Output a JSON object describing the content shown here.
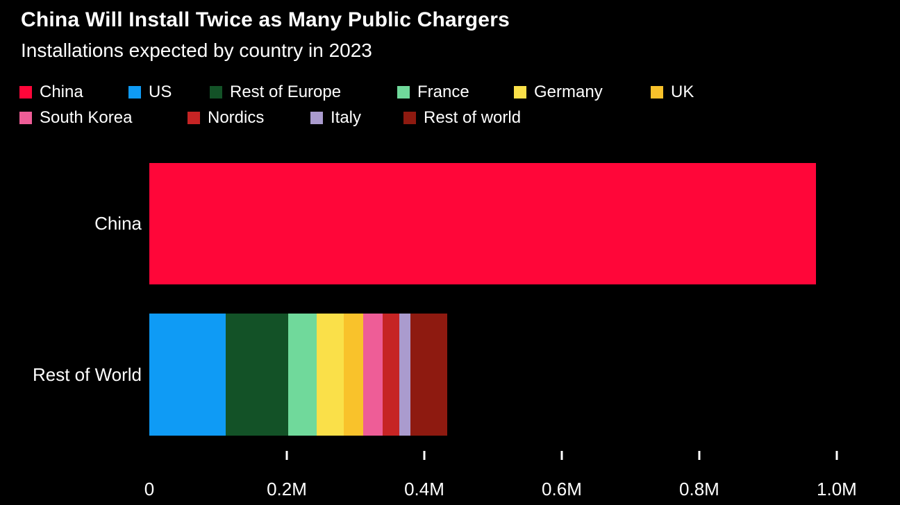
{
  "colors": {
    "background": "#000000",
    "text": "#ffffff",
    "china": "#ff0639",
    "us": "#0f9bf5",
    "rest_of_europe": "#135227",
    "france": "#70d99b",
    "germany": "#fae049",
    "uk": "#f9c22b",
    "south_korea": "#ee5d97",
    "nordics": "#c62424",
    "italy": "#aa9bce",
    "rest_of_world": "#8e1a10"
  },
  "chart_data": {
    "type": "bar",
    "orientation": "horizontal",
    "stacked": true,
    "title": "China Will Install Twice as Many Public Chargers",
    "subtitle": "Installations expected by country in 2023",
    "xlabel": "",
    "ylabel": "",
    "unit": "public chargers",
    "xlim": [
      0,
      1092000
    ],
    "grid": false,
    "legend_position": "top",
    "x_ticks": [
      {
        "label": "0",
        "value": 0,
        "show_mark": false
      },
      {
        "label": "0.2M",
        "value": 200000,
        "show_mark": true
      },
      {
        "label": "0.4M",
        "value": 400000,
        "show_mark": true
      },
      {
        "label": "0.6M",
        "value": 600000,
        "show_mark": true
      },
      {
        "label": "0.8M",
        "value": 800000,
        "show_mark": true
      },
      {
        "label": "1.0M",
        "value": 1000000,
        "show_mark": true
      }
    ],
    "rows": [
      {
        "category": "China",
        "segments": [
          {
            "name": "China",
            "color": "china",
            "value": 970000
          }
        ]
      },
      {
        "category": "Rest of World",
        "segments": [
          {
            "name": "US",
            "color": "us",
            "value": 111000
          },
          {
            "name": "Rest of Europe",
            "color": "rest_of_europe",
            "value": 91000
          },
          {
            "name": "France",
            "color": "france",
            "value": 41000
          },
          {
            "name": "Germany",
            "color": "germany",
            "value": 40000
          },
          {
            "name": "UK",
            "color": "uk",
            "value": 28000
          },
          {
            "name": "South Korea",
            "color": "south_korea",
            "value": 28000
          },
          {
            "name": "Nordics",
            "color": "nordics",
            "value": 25000
          },
          {
            "name": "Italy",
            "color": "italy",
            "value": 16000
          },
          {
            "name": "Rest of world",
            "color": "rest_of_world",
            "value": 53000
          }
        ]
      }
    ],
    "legend": {
      "rows": [
        [
          {
            "label": "China",
            "color": "china"
          },
          {
            "label": "US",
            "color": "us"
          },
          {
            "label": "Rest of Europe",
            "color": "rest_of_europe"
          },
          {
            "label": "France",
            "color": "france"
          },
          {
            "label": "Germany",
            "color": "germany"
          },
          {
            "label": "UK",
            "color": "uk"
          }
        ],
        [
          {
            "label": "South Korea",
            "color": "south_korea"
          },
          {
            "label": "Nordics",
            "color": "nordics"
          },
          {
            "label": "Italy",
            "color": "italy"
          },
          {
            "label": "Rest of world",
            "color": "rest_of_world"
          }
        ]
      ]
    }
  }
}
